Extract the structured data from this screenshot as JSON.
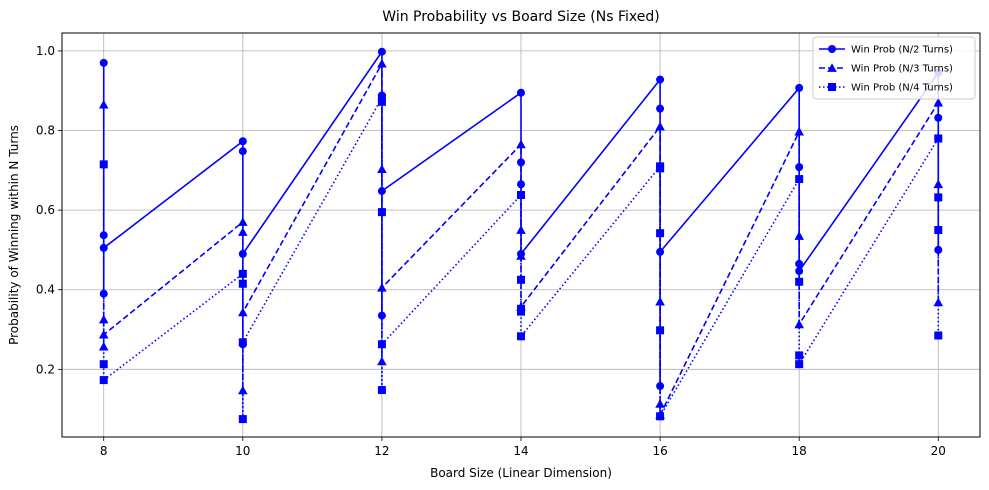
{
  "chart_data": {
    "type": "line",
    "title": "Win Probability vs Board Size (Ns Fixed)",
    "xlabel": "Board Size (Linear Dimension)",
    "ylabel": "Probability of Winning within N Turns",
    "xlim": [
      7.4,
      20.6
    ],
    "ylim": [
      0.03,
      1.045
    ],
    "xticks": [
      8,
      10,
      12,
      14,
      16,
      18,
      20
    ],
    "yticks": [
      0.2,
      0.4,
      0.6,
      0.8,
      1.0
    ],
    "xtick_labels": [
      "8",
      "10",
      "12",
      "14",
      "16",
      "18",
      "20"
    ],
    "ytick_labels": [
      "0.2",
      "0.4",
      "0.6",
      "0.8",
      "1.0"
    ],
    "grid": true,
    "legend_position": "top-right",
    "color": "#0000ff",
    "series": [
      {
        "name": "Win Prob (N/2 Turns)",
        "marker": "circle",
        "dash": "solid",
        "points": [
          [
            8,
            0.97
          ],
          [
            8,
            0.537
          ],
          [
            8,
            0.39
          ],
          [
            8,
            0.505
          ],
          [
            10,
            0.773
          ],
          [
            10,
            0.748
          ],
          [
            10,
            0.263
          ],
          [
            10,
            0.49
          ],
          [
            12,
            0.998
          ],
          [
            12,
            0.888
          ],
          [
            12,
            0.335
          ],
          [
            12,
            0.648
          ],
          [
            14,
            0.895
          ],
          [
            14,
            0.72
          ],
          [
            14,
            0.665
          ],
          [
            14,
            0.49
          ],
          [
            16,
            0.928
          ],
          [
            16,
            0.855
          ],
          [
            16,
            0.158
          ],
          [
            16,
            0.495
          ],
          [
            18,
            0.907
          ],
          [
            18,
            0.708
          ],
          [
            18,
            0.465
          ],
          [
            18,
            0.447
          ],
          [
            20,
            0.945
          ],
          [
            20,
            0.832
          ],
          [
            20,
            0.5
          ]
        ]
      },
      {
        "name": "Win Prob (N/3 Turns)",
        "marker": "triangle",
        "dash": "dashed",
        "points": [
          [
            8,
            0.865
          ],
          [
            8,
            0.325
          ],
          [
            8,
            0.257
          ],
          [
            8,
            0.287
          ],
          [
            10,
            0.57
          ],
          [
            10,
            0.545
          ],
          [
            10,
            0.147
          ],
          [
            10,
            0.343
          ],
          [
            12,
            0.968
          ],
          [
            12,
            0.703
          ],
          [
            12,
            0.22
          ],
          [
            12,
            0.405
          ],
          [
            14,
            0.765
          ],
          [
            14,
            0.55
          ],
          [
            14,
            0.485
          ],
          [
            14,
            0.357
          ],
          [
            16,
            0.81
          ],
          [
            16,
            0.37
          ],
          [
            16,
            0.113
          ],
          [
            16,
            0.085
          ],
          [
            18,
            0.797
          ],
          [
            18,
            0.535
          ],
          [
            18,
            0.313
          ],
          [
            20,
            0.87
          ],
          [
            20,
            0.665
          ],
          [
            20,
            0.368
          ]
        ]
      },
      {
        "name": "Win Prob (N/4 Turns)",
        "marker": "square",
        "dash": "dotted",
        "points": [
          [
            8,
            0.715
          ],
          [
            8,
            0.213
          ],
          [
            8,
            0.173
          ],
          [
            10,
            0.44
          ],
          [
            10,
            0.415
          ],
          [
            10,
            0.075
          ],
          [
            10,
            0.268
          ],
          [
            12,
            0.882
          ],
          [
            12,
            0.872
          ],
          [
            12,
            0.595
          ],
          [
            12,
            0.148
          ],
          [
            12,
            0.263
          ],
          [
            14,
            0.638
          ],
          [
            14,
            0.425
          ],
          [
            14,
            0.345
          ],
          [
            14,
            0.352
          ],
          [
            14,
            0.283
          ],
          [
            16,
            0.71
          ],
          [
            16,
            0.705
          ],
          [
            16,
            0.542
          ],
          [
            16,
            0.298
          ],
          [
            16,
            0.082
          ],
          [
            18,
            0.678
          ],
          [
            18,
            0.42
          ],
          [
            18,
            0.235
          ],
          [
            18,
            0.213
          ],
          [
            20,
            0.78
          ],
          [
            20,
            0.632
          ],
          [
            20,
            0.55
          ],
          [
            20,
            0.285
          ]
        ]
      }
    ]
  }
}
